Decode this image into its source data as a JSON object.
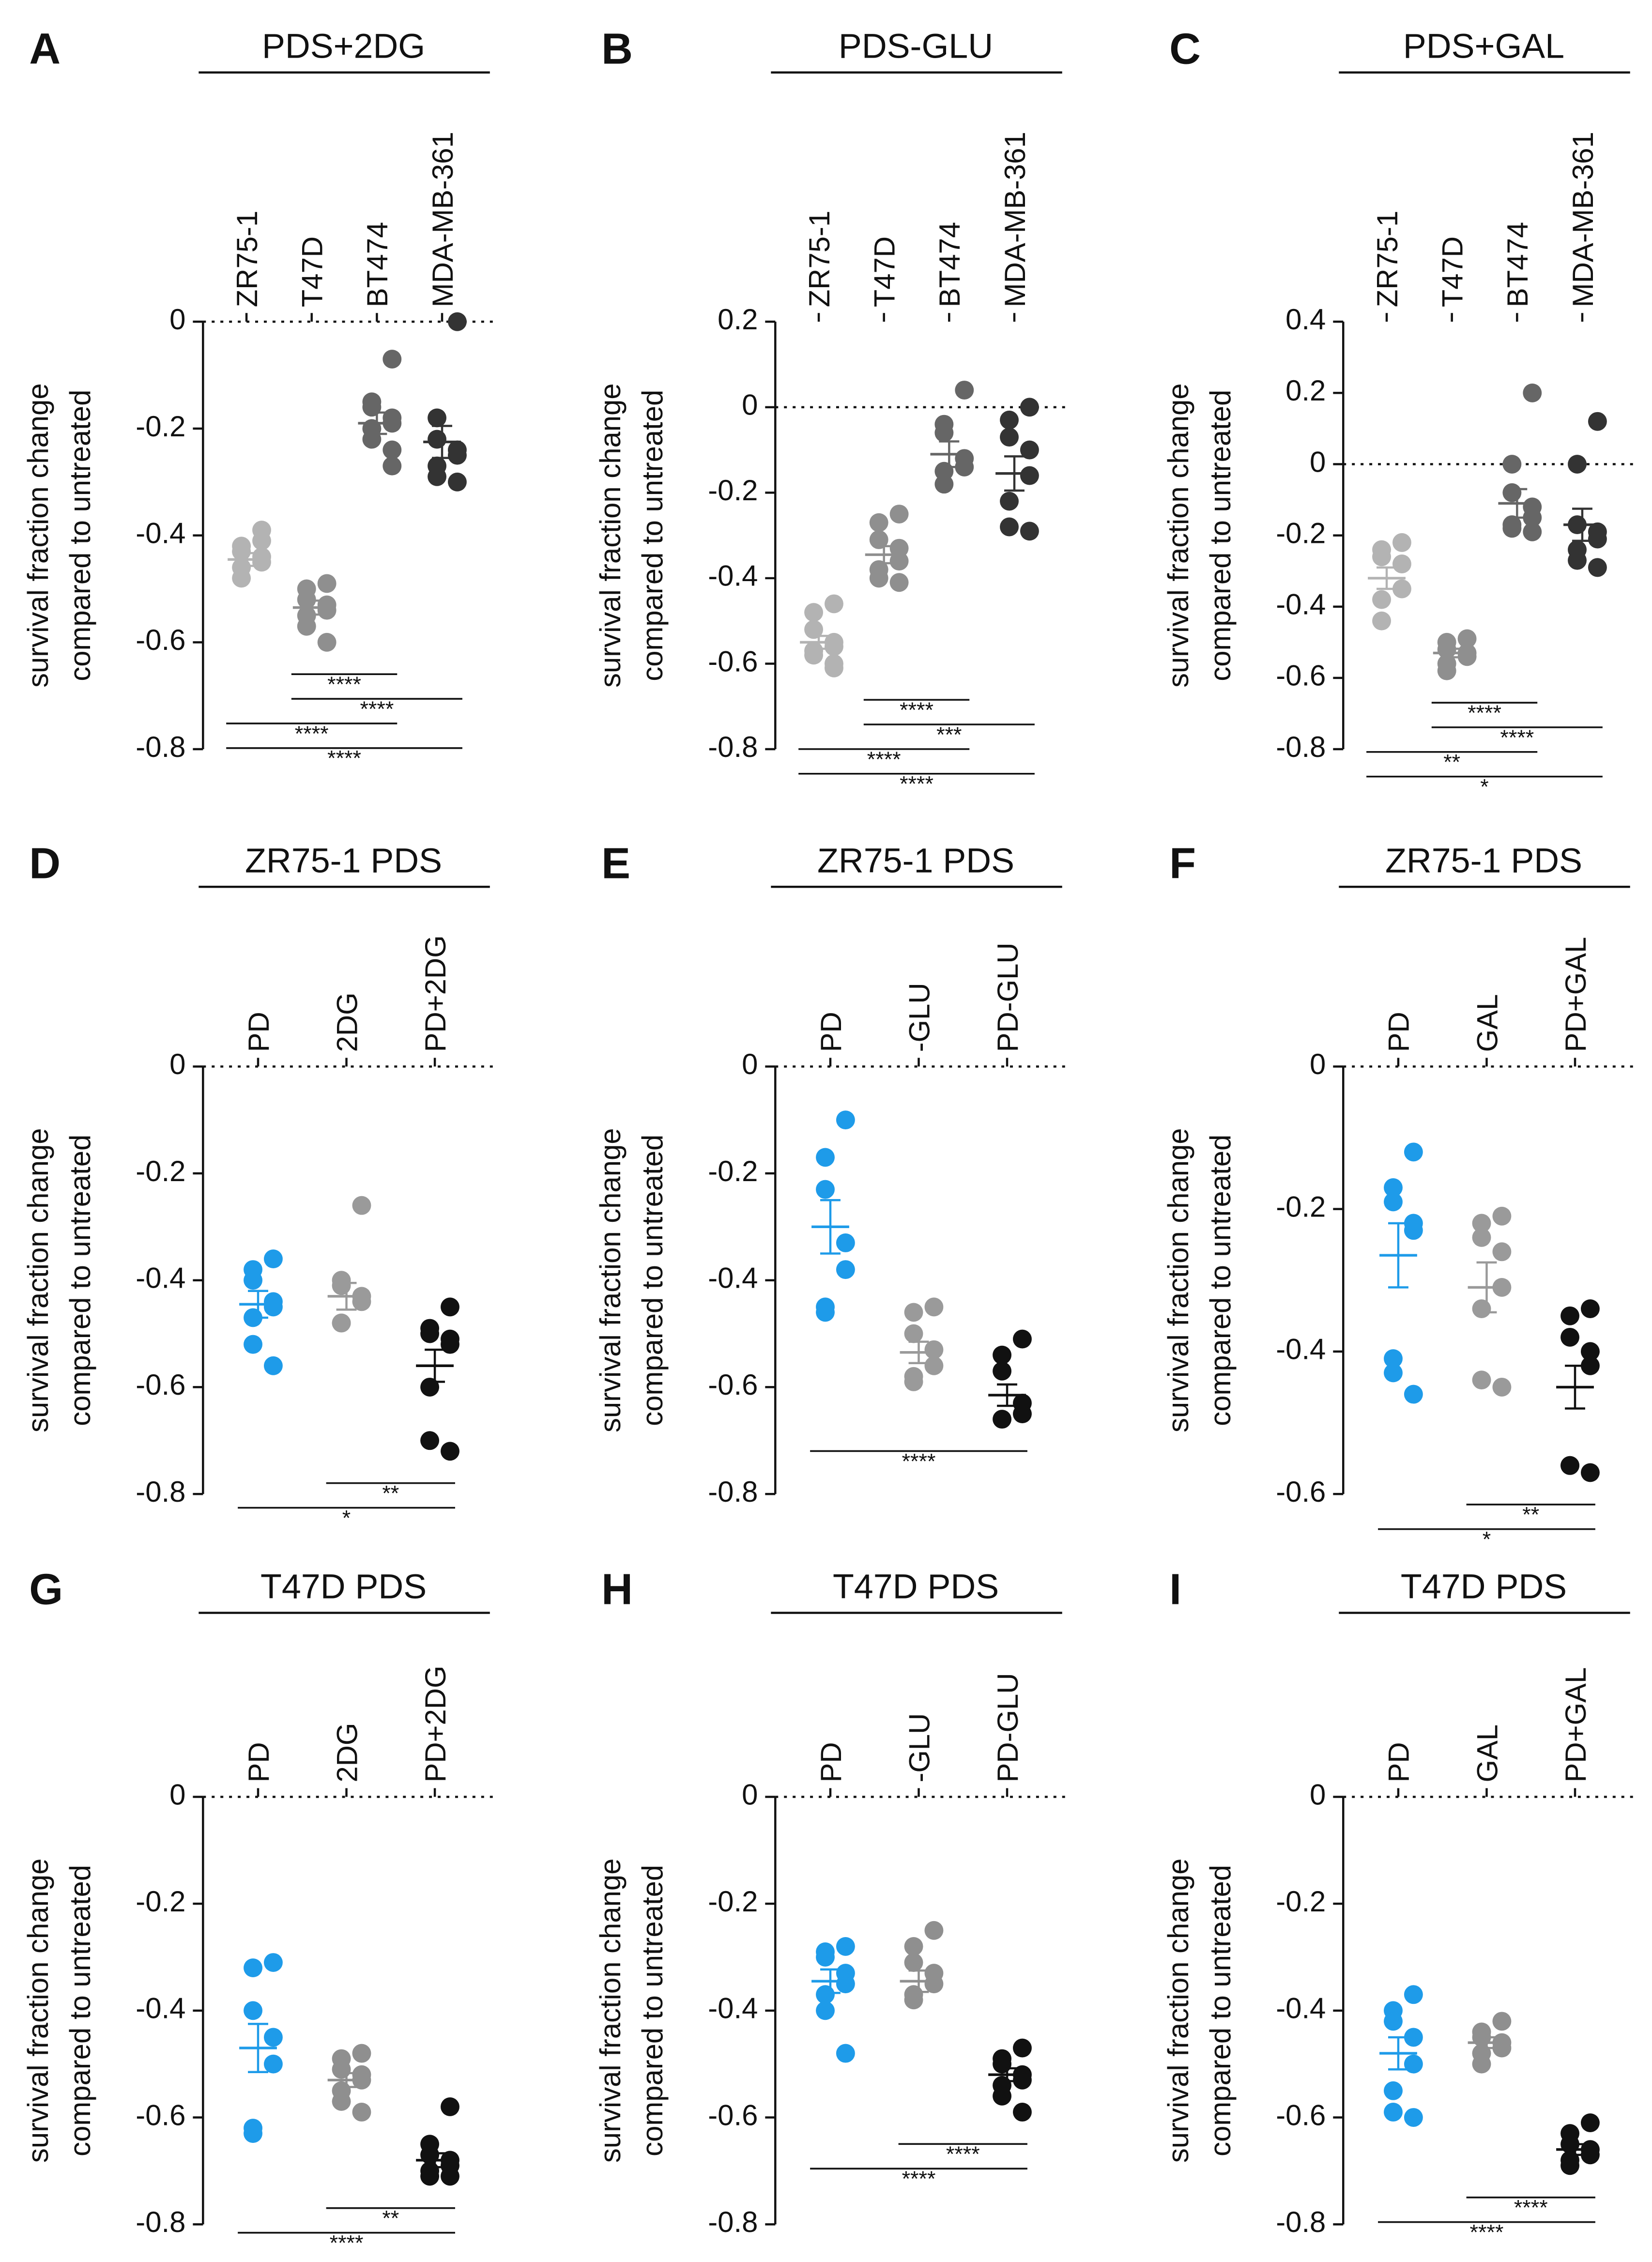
{
  "chart_data": [
    {
      "type": "dot",
      "letter": "A",
      "title": "PDS+2DG",
      "ylabel": [
        "survival fraction change",
        "compared to untreated"
      ],
      "ylim": [
        -0.8,
        0
      ],
      "yticks": [
        0,
        -0.2,
        -0.4,
        -0.6,
        -0.8
      ],
      "series": [
        {
          "name": "ZR75-1",
          "color": "#b3b3b3",
          "values": [
            -0.39,
            -0.42,
            -0.43,
            -0.44,
            -0.45,
            -0.46,
            -0.48,
            -0.41
          ],
          "mean": -0.445,
          "sem": 0.012
        },
        {
          "name": "T47D",
          "color": "#8f8f8f",
          "values": [
            -0.49,
            -0.5,
            -0.52,
            -0.53,
            -0.54,
            -0.55,
            -0.57,
            -0.6
          ],
          "mean": -0.535,
          "sem": 0.013
        },
        {
          "name": "BT474",
          "color": "#666666",
          "values": [
            -0.07,
            -0.15,
            -0.16,
            -0.18,
            -0.19,
            -0.2,
            -0.22,
            -0.24,
            -0.27
          ],
          "mean": -0.19,
          "sem": 0.02
        },
        {
          "name": "MDA-MB-361",
          "color": "#333333",
          "values": [
            0,
            -0.18,
            -0.22,
            -0.24,
            -0.25,
            -0.27,
            -0.29,
            -0.3
          ],
          "mean": -0.225,
          "sem": 0.03
        }
      ],
      "brackets": [
        {
          "from": 1,
          "to": 2,
          "label": "****"
        },
        {
          "from": 1,
          "to": 3,
          "label": "****"
        },
        {
          "from": 0,
          "to": 2,
          "label": "****"
        },
        {
          "from": 0,
          "to": 3,
          "label": "****"
        }
      ]
    },
    {
      "type": "dot",
      "letter": "B",
      "title": "PDS-GLU",
      "ylabel": [
        "survival fraction change",
        "compared to untreated"
      ],
      "ylim": [
        -0.8,
        0.2
      ],
      "yticks": [
        0.2,
        0,
        -0.2,
        -0.4,
        -0.6,
        -0.8
      ],
      "series": [
        {
          "name": "ZR75-1",
          "color": "#b3b3b3",
          "values": [
            -0.46,
            -0.48,
            -0.52,
            -0.55,
            -0.56,
            -0.57,
            -0.58,
            -0.6,
            -0.61
          ],
          "mean": -0.55,
          "sem": 0.015
        },
        {
          "name": "T47D",
          "color": "#8f8f8f",
          "values": [
            -0.25,
            -0.27,
            -0.31,
            -0.33,
            -0.36,
            -0.38,
            -0.4,
            -0.41
          ],
          "mean": -0.345,
          "sem": 0.02
        },
        {
          "name": "BT474",
          "color": "#666666",
          "values": [
            0.04,
            -0.04,
            -0.06,
            -0.12,
            -0.14,
            -0.15,
            -0.18
          ],
          "mean": -0.11,
          "sem": 0.03
        },
        {
          "name": "MDA-MB-361",
          "color": "#333333",
          "values": [
            0,
            -0.03,
            -0.07,
            -0.1,
            -0.16,
            -0.22,
            -0.28,
            -0.29
          ],
          "mean": -0.155,
          "sem": 0.04
        }
      ],
      "brackets": [
        {
          "from": 1,
          "to": 2,
          "label": "****"
        },
        {
          "from": 1,
          "to": 3,
          "label": "***"
        },
        {
          "from": 0,
          "to": 2,
          "label": "****"
        },
        {
          "from": 0,
          "to": 3,
          "label": "****"
        }
      ]
    },
    {
      "type": "dot",
      "letter": "C",
      "title": "PDS+GAL",
      "ylabel": [
        "survival fraction change",
        "compared to untreated"
      ],
      "ylim": [
        -0.8,
        0.4
      ],
      "yticks": [
        0.4,
        0.2,
        0,
        -0.2,
        -0.4,
        -0.6,
        -0.8
      ],
      "series": [
        {
          "name": "ZR75-1",
          "color": "#b3b3b3",
          "values": [
            -0.22,
            -0.24,
            -0.26,
            -0.28,
            -0.35,
            -0.38,
            -0.44
          ],
          "mean": -0.32,
          "sem": 0.03
        },
        {
          "name": "T47D",
          "color": "#8f8f8f",
          "values": [
            -0.49,
            -0.5,
            -0.52,
            -0.53,
            -0.54,
            -0.56,
            -0.58
          ],
          "mean": -0.53,
          "sem": 0.012
        },
        {
          "name": "BT474",
          "color": "#666666",
          "values": [
            0.2,
            0,
            -0.08,
            -0.12,
            -0.15,
            -0.17,
            -0.18,
            -0.19
          ],
          "mean": -0.11,
          "sem": 0.04
        },
        {
          "name": "MDA-MB-361",
          "color": "#333333",
          "values": [
            0.12,
            0,
            -0.17,
            -0.19,
            -0.21,
            -0.24,
            -0.27,
            -0.29
          ],
          "mean": -0.17,
          "sem": 0.045
        }
      ],
      "brackets": [
        {
          "from": 1,
          "to": 2,
          "label": "****"
        },
        {
          "from": 1,
          "to": 3,
          "label": "****"
        },
        {
          "from": 0,
          "to": 2,
          "label": "**"
        },
        {
          "from": 0,
          "to": 3,
          "label": "*"
        }
      ]
    },
    {
      "type": "dot",
      "letter": "D",
      "title": "ZR75-1 PDS",
      "ylabel": [
        "survival fraction change",
        "compared to untreated"
      ],
      "ylim": [
        -0.8,
        0
      ],
      "yticks": [
        0,
        -0.2,
        -0.4,
        -0.6,
        -0.8
      ],
      "series": [
        {
          "name": "PD",
          "color": "#1e9be9",
          "values": [
            -0.36,
            -0.38,
            -0.4,
            -0.44,
            -0.45,
            -0.47,
            -0.52,
            -0.56
          ],
          "mean": -0.445,
          "sem": 0.025
        },
        {
          "name": "2DG",
          "color": "#9a9a9a",
          "values": [
            -0.26,
            -0.4,
            -0.41,
            -0.43,
            -0.44,
            -0.48,
            -0.48
          ],
          "mean": -0.43,
          "sem": 0.025
        },
        {
          "name": "PD+2DG",
          "color": "#111111",
          "values": [
            -0.45,
            -0.49,
            -0.5,
            -0.51,
            -0.52,
            -0.6,
            -0.7,
            -0.72
          ],
          "mean": -0.56,
          "sem": 0.03
        }
      ],
      "brackets": [
        {
          "from": 1,
          "to": 2,
          "label": "**"
        },
        {
          "from": 0,
          "to": 2,
          "label": "*"
        }
      ]
    },
    {
      "type": "dot",
      "letter": "E",
      "title": "ZR75-1 PDS",
      "ylabel": [
        "survival fraction change",
        "compared to untreated"
      ],
      "ylim": [
        -0.8,
        0
      ],
      "yticks": [
        0,
        -0.2,
        -0.4,
        -0.6,
        -0.8
      ],
      "series": [
        {
          "name": "PD",
          "color": "#1e9be9",
          "values": [
            -0.1,
            -0.17,
            -0.23,
            -0.33,
            -0.38,
            -0.45,
            -0.46
          ],
          "mean": -0.3,
          "sem": 0.05
        },
        {
          "name": "-GLU",
          "color": "#9a9a9a",
          "values": [
            -0.45,
            -0.46,
            -0.5,
            -0.53,
            -0.56,
            -0.58,
            -0.59
          ],
          "mean": -0.535,
          "sem": 0.02
        },
        {
          "name": "PD-GLU",
          "color": "#111111",
          "values": [
            -0.51,
            -0.54,
            -0.57,
            -0.63,
            -0.65,
            -0.66
          ],
          "mean": -0.615,
          "sem": 0.02
        }
      ],
      "brackets": [
        {
          "from": 0,
          "to": 2,
          "label": "****"
        }
      ]
    },
    {
      "type": "dot",
      "letter": "F",
      "title": "ZR75-1 PDS",
      "ylabel": [
        "survival fraction change",
        "compared to untreated"
      ],
      "ylim": [
        -0.6,
        0
      ],
      "yticks": [
        0,
        -0.2,
        -0.4,
        -0.6
      ],
      "series": [
        {
          "name": "PD",
          "color": "#1e9be9",
          "values": [
            -0.12,
            -0.17,
            -0.19,
            -0.22,
            -0.23,
            -0.41,
            -0.43,
            -0.46
          ],
          "mean": -0.265,
          "sem": 0.045
        },
        {
          "name": "GAL",
          "color": "#9a9a9a",
          "values": [
            -0.21,
            -0.22,
            -0.24,
            -0.26,
            -0.31,
            -0.34,
            -0.44,
            -0.45
          ],
          "mean": -0.31,
          "sem": 0.035
        },
        {
          "name": "PD+GAL",
          "color": "#111111",
          "values": [
            -0.34,
            -0.35,
            -0.38,
            -0.4,
            -0.42,
            -0.56,
            -0.56,
            -0.57
          ],
          "mean": -0.45,
          "sem": 0.03
        }
      ],
      "brackets": [
        {
          "from": 1,
          "to": 2,
          "label": "**"
        },
        {
          "from": 0,
          "to": 2,
          "label": "*"
        }
      ]
    },
    {
      "type": "dot",
      "letter": "G",
      "title": "T47D PDS",
      "ylabel": [
        "survival fraction change",
        "compared to untreated"
      ],
      "ylim": [
        -0.8,
        0
      ],
      "yticks": [
        0,
        -0.2,
        -0.4,
        -0.6,
        -0.8
      ],
      "series": [
        {
          "name": "PD",
          "color": "#1e9be9",
          "values": [
            -0.31,
            -0.32,
            -0.4,
            -0.45,
            -0.5,
            -0.62,
            -0.63
          ],
          "mean": -0.47,
          "sem": 0.045
        },
        {
          "name": "2DG",
          "color": "#8f8f8f",
          "values": [
            -0.48,
            -0.49,
            -0.51,
            -0.52,
            -0.53,
            -0.55,
            -0.57,
            -0.59
          ],
          "mean": -0.53,
          "sem": 0.013
        },
        {
          "name": "PD+2DG",
          "color": "#111111",
          "values": [
            -0.58,
            -0.65,
            -0.67,
            -0.68,
            -0.69,
            -0.7,
            -0.71,
            -0.71
          ],
          "mean": -0.68,
          "sem": 0.013
        }
      ],
      "brackets": [
        {
          "from": 1,
          "to": 2,
          "label": "**"
        },
        {
          "from": 0,
          "to": 2,
          "label": "****"
        }
      ]
    },
    {
      "type": "dot",
      "letter": "H",
      "title": "T47D PDS",
      "ylabel": [
        "survival fraction change",
        "compared to untreated"
      ],
      "ylim": [
        -0.8,
        0
      ],
      "yticks": [
        0,
        -0.2,
        -0.4,
        -0.6,
        -0.8
      ],
      "series": [
        {
          "name": "PD",
          "color": "#1e9be9",
          "values": [
            -0.28,
            -0.29,
            -0.3,
            -0.33,
            -0.35,
            -0.37,
            -0.4,
            -0.48
          ],
          "mean": -0.345,
          "sem": 0.022
        },
        {
          "name": "-GLU",
          "color": "#8f8f8f",
          "values": [
            -0.25,
            -0.28,
            -0.31,
            -0.33,
            -0.35,
            -0.37,
            -0.38
          ],
          "mean": -0.345,
          "sem": 0.02
        },
        {
          "name": "PD-GLU",
          "color": "#111111",
          "values": [
            -0.47,
            -0.49,
            -0.5,
            -0.52,
            -0.53,
            -0.54,
            -0.56,
            -0.59
          ],
          "mean": -0.52,
          "sem": 0.012
        }
      ],
      "brackets": [
        {
          "from": 1,
          "to": 2,
          "label": "****"
        },
        {
          "from": 0,
          "to": 2,
          "label": "****"
        }
      ]
    },
    {
      "type": "dot",
      "letter": "I",
      "title": "T47D PDS",
      "ylabel": [
        "survival fraction change",
        "compared to untreated"
      ],
      "ylim": [
        -0.8,
        0
      ],
      "yticks": [
        0,
        -0.2,
        -0.4,
        -0.6,
        -0.8
      ],
      "series": [
        {
          "name": "PD",
          "color": "#1e9be9",
          "values": [
            -0.37,
            -0.4,
            -0.42,
            -0.45,
            -0.5,
            -0.55,
            -0.59,
            -0.6
          ],
          "mean": -0.48,
          "sem": 0.03
        },
        {
          "name": "GAL",
          "color": "#8f8f8f",
          "values": [
            -0.42,
            -0.44,
            -0.45,
            -0.46,
            -0.47,
            -0.48,
            -0.5
          ],
          "mean": -0.46,
          "sem": 0.01
        },
        {
          "name": "PD+GAL",
          "color": "#111111",
          "values": [
            -0.61,
            -0.63,
            -0.65,
            -0.66,
            -0.67,
            -0.68,
            -0.69
          ],
          "mean": -0.66,
          "sem": 0.01
        }
      ],
      "brackets": [
        {
          "from": 1,
          "to": 2,
          "label": "****"
        },
        {
          "from": 0,
          "to": 2,
          "label": "****"
        }
      ]
    }
  ]
}
